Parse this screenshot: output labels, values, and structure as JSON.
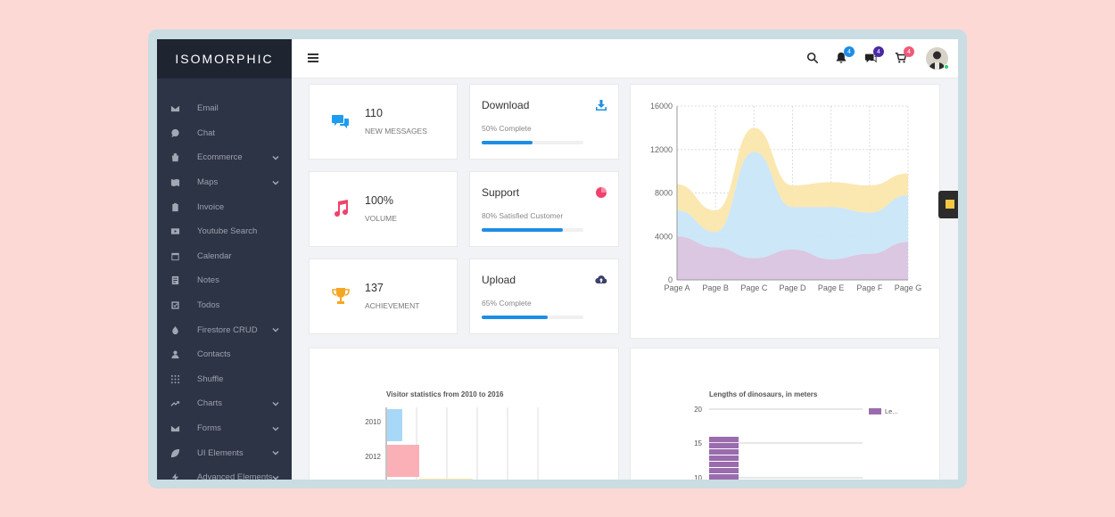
{
  "app": {
    "logo": "ISOMORPHIC"
  },
  "sidebar": {
    "items": [
      {
        "label": "Email",
        "icon": "mail-icon",
        "has_submenu": false
      },
      {
        "label": "Chat",
        "icon": "chat-icon",
        "has_submenu": false
      },
      {
        "label": "Ecommerce",
        "icon": "bag-icon",
        "has_submenu": true
      },
      {
        "label": "Maps",
        "icon": "map-icon",
        "has_submenu": true
      },
      {
        "label": "Invoice",
        "icon": "clipboard-icon",
        "has_submenu": false
      },
      {
        "label": "Youtube Search",
        "icon": "youtube-icon",
        "has_submenu": false
      },
      {
        "label": "Calendar",
        "icon": "calendar-icon",
        "has_submenu": false
      },
      {
        "label": "Notes",
        "icon": "notes-icon",
        "has_submenu": false
      },
      {
        "label": "Todos",
        "icon": "checkbox-icon",
        "has_submenu": false
      },
      {
        "label": "Firestore CRUD",
        "icon": "flame-icon",
        "has_submenu": true
      },
      {
        "label": "Contacts",
        "icon": "contact-icon",
        "has_submenu": false
      },
      {
        "label": "Shuffle",
        "icon": "grid-icon",
        "has_submenu": false
      },
      {
        "label": "Charts",
        "icon": "trend-icon",
        "has_submenu": true
      },
      {
        "label": "Forms",
        "icon": "mail-icon",
        "has_submenu": true
      },
      {
        "label": "UI Elements",
        "icon": "leaf-icon",
        "has_submenu": true
      },
      {
        "label": "Advanced Elements",
        "icon": "bolt-icon",
        "has_submenu": true
      }
    ]
  },
  "topbar": {
    "notifications_badge": "4",
    "messages_badge": "4",
    "cart_badge": "4",
    "badge_colors": {
      "notifications": "#1e8de6",
      "messages": "#4b2aa6",
      "cart": "#f05a78"
    }
  },
  "stats": [
    {
      "value": "110",
      "label": "NEW MESSAGES",
      "icon": "chat-bubbles-icon",
      "color": "#1e9cf0"
    },
    {
      "value": "100%",
      "label": "VOLUME",
      "icon": "music-note-icon",
      "color": "#f0426c"
    },
    {
      "value": "137",
      "label": "ACHIEVEMENT",
      "icon": "trophy-icon",
      "color": "#f5a623"
    }
  ],
  "progress_cards": [
    {
      "title": "Download",
      "status": "50% Complete",
      "percent": 50,
      "icon": "download-icon",
      "icon_color": "#1e8de6"
    },
    {
      "title": "Support",
      "status": "80% Satisfied Customer",
      "percent": 80,
      "icon": "pie-icon",
      "icon_color": "#f0426c"
    },
    {
      "title": "Upload",
      "status": "65% Complete",
      "percent": 65,
      "icon": "cloud-upload-icon",
      "icon_color": "#3a3f6b"
    }
  ],
  "chart_data": [
    {
      "type": "area",
      "categories": [
        "Page A",
        "Page B",
        "Page C",
        "Page D",
        "Page E",
        "Page F",
        "Page G"
      ],
      "ylim": [
        0,
        16000
      ],
      "yticks": [
        "0",
        "4000",
        "8000",
        "12000",
        "16000"
      ],
      "grid": true,
      "series": [
        {
          "values": [
            4000,
            3000,
            2000,
            2800,
            1900,
            2400,
            3500
          ],
          "color": "#d9c4e0"
        },
        {
          "values": [
            2400,
            1400,
            9800,
            3900,
            4800,
            3800,
            4300
          ],
          "color": "#c9e6f8"
        },
        {
          "values": [
            2400,
            2000,
            2200,
            2000,
            2300,
            2500,
            2000
          ],
          "color": "#fbe6ac"
        }
      ]
    },
    {
      "type": "bar",
      "title": "Visitor statistics from 2010 to 2016",
      "orientation": "horizontal",
      "categories": [
        "2010",
        "2012"
      ],
      "colors": [
        "#a8d8f8",
        "#fbb0b7"
      ]
    },
    {
      "type": "bar",
      "title": "Lengths of dinosaurs, in meters",
      "yticks": [
        "20",
        "15",
        "10"
      ],
      "legend": [
        "Le..."
      ],
      "legend_position": "top-right",
      "color": "#9a6cae"
    }
  ]
}
